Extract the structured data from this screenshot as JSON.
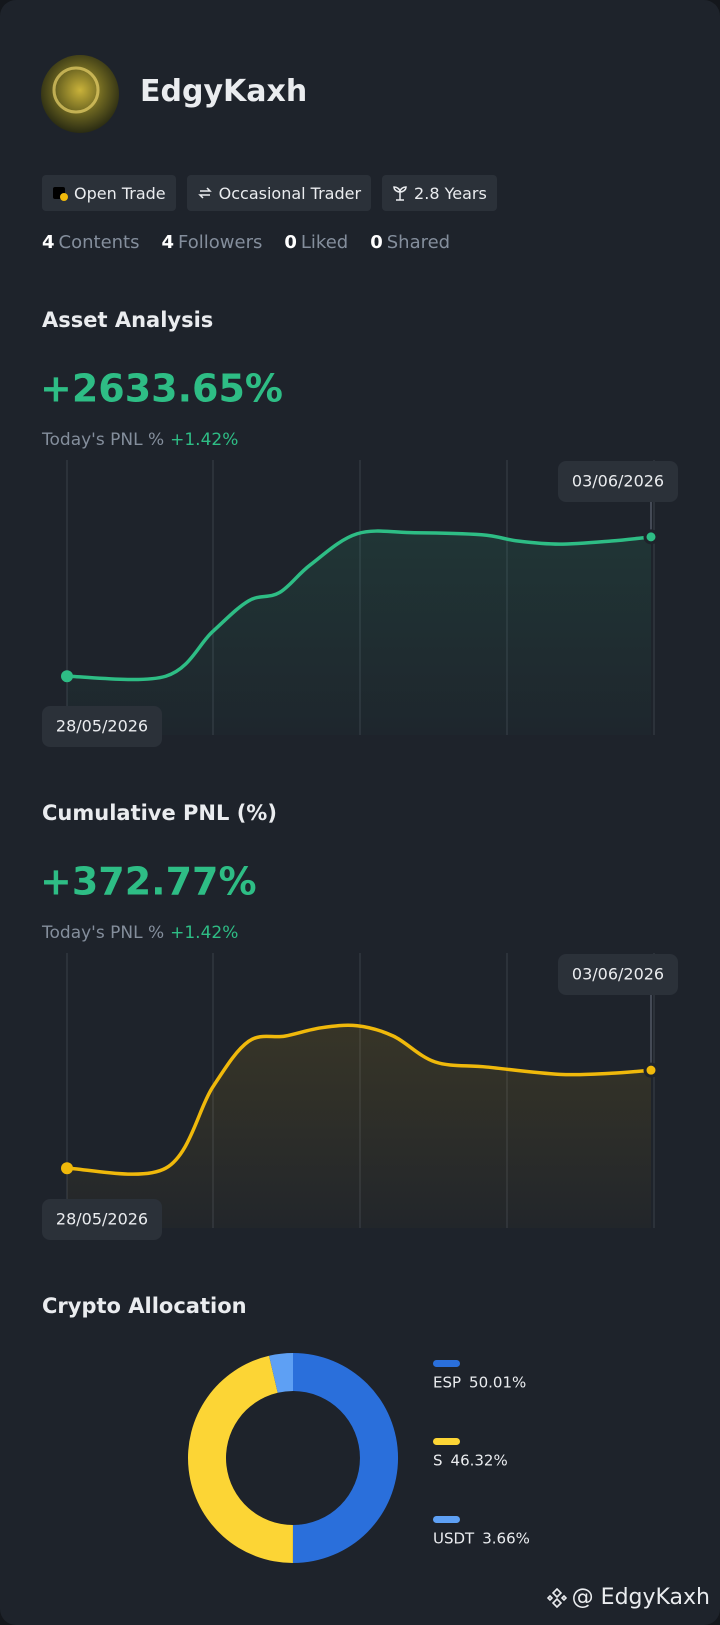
{
  "profile": {
    "name": "EdgyKaxh",
    "tags": [
      "Open Trade",
      "Occasional Trader",
      "2.8 Years"
    ],
    "stats": [
      {
        "count": 4,
        "label": "Contents"
      },
      {
        "count": 4,
        "label": "Followers"
      },
      {
        "count": 0,
        "label": "Liked"
      },
      {
        "count": 0,
        "label": "Shared"
      }
    ],
    "watermark": "@ EdgyKaxh"
  },
  "chart_data": [
    {
      "type": "line",
      "title": "Asset Analysis",
      "headline": "+2633.65%",
      "pnl_label": "Today's PNL %",
      "pnl_value": "+1.42%",
      "start_date": "28/05/2026",
      "end_date": "03/06/2026",
      "x": [
        0,
        16.9,
        24.9,
        31.1,
        36.4,
        41.7,
        49.7,
        59.5,
        71.0,
        77.2,
        84.3,
        93.2,
        100
      ],
      "xlim": [
        0,
        100
      ],
      "ylim": [
        0,
        100
      ],
      "series": [
        {
          "color": "#2ebd85",
          "values": [
            22.6,
            22.6,
            39.7,
            51.6,
            54.8,
            65.5,
            77.4,
            77.8,
            77.0,
            74.6,
            73.4,
            74.6,
            76.2
          ]
        }
      ]
    },
    {
      "type": "line",
      "title": "Cumulative PNL (%)",
      "headline": "+372.77%",
      "pnl_label": "Today's PNL %",
      "pnl_value": "+1.42%",
      "start_date": "28/05/2026",
      "end_date": "03/06/2026",
      "x": [
        0,
        16.9,
        24.9,
        31.1,
        37.3,
        43.5,
        49.7,
        55.9,
        63.0,
        71.9,
        84.3,
        93.2,
        100
      ],
      "xlim": [
        0,
        100
      ],
      "ylim": [
        0,
        100
      ],
      "series": [
        {
          "color": "#f0b90b",
          "values": [
            23.0,
            23.0,
            54.0,
            71.8,
            73.8,
            77.0,
            77.8,
            73.8,
            63.9,
            61.9,
            59.1,
            59.5,
            60.7
          ]
        }
      ]
    },
    {
      "type": "pie",
      "title": "Crypto Allocation",
      "categories": [
        "ESP",
        "S",
        "USDT"
      ],
      "values": [
        50.01,
        46.32,
        3.66
      ],
      "value_labels": [
        "50.01%",
        "46.32%",
        "3.66%"
      ],
      "colors": [
        "#2a6fdb",
        "#fcd535",
        "#5ea0f4"
      ]
    }
  ]
}
